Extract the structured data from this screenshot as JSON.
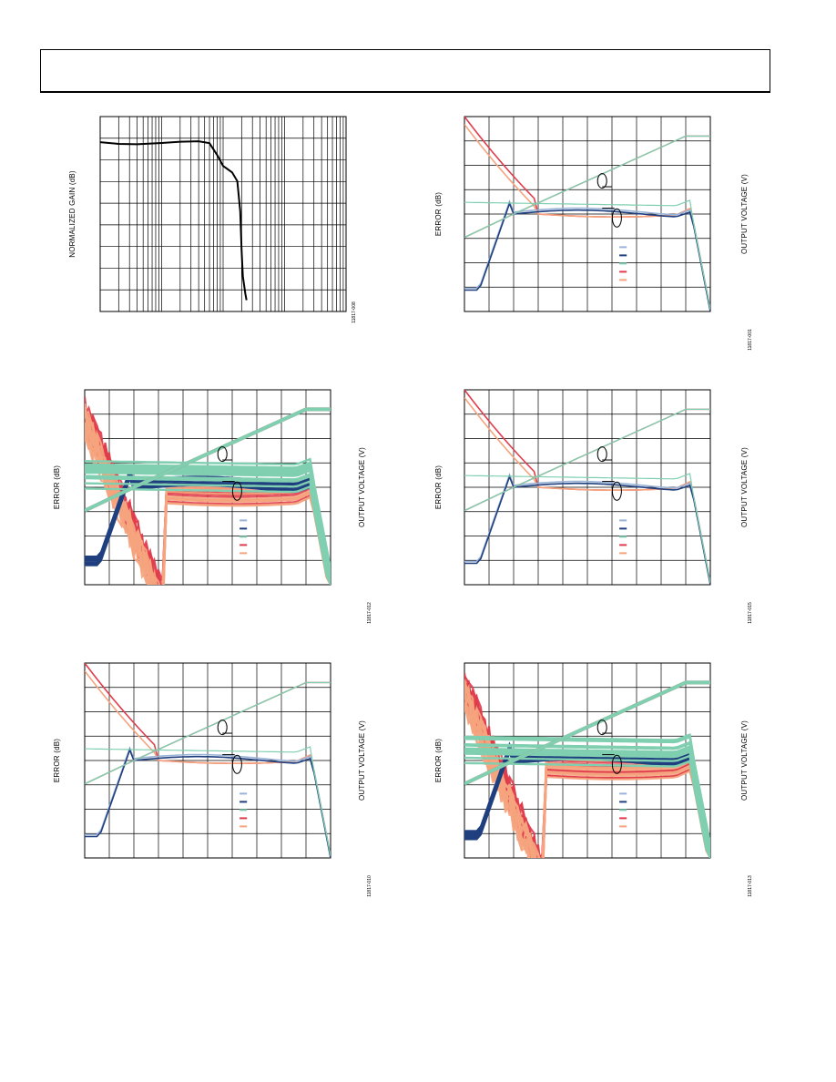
{
  "page": {
    "header_text": ""
  },
  "figures": [
    {
      "id": "gain",
      "kind": "gain",
      "ylabel": "NORMALIZED GAIN (dB)",
      "y2label": "",
      "figid": "11817-008",
      "chart_data": {
        "type": "line",
        "xscale": "log",
        "grid": true,
        "legend_entries": 0,
        "series": [
          {
            "color": "#000000",
            "x": [
              0.1,
              0.2,
              0.4,
              1,
              2,
              4,
              6,
              8,
              10,
              14,
              17,
              19,
              20,
              21,
              23,
              24
            ],
            "y": [
              0,
              -0.08,
              -0.1,
              -0.04,
              0.02,
              0.04,
              -0.05,
              -0.6,
              -1.1,
              -1.4,
              -1.8,
              -3.2,
              -5,
              -6.2,
              -7.0,
              -7.3
            ]
          }
        ]
      }
    },
    {
      "id": "fig-r1-right",
      "kind": "error",
      "ylabel": "ERROR (dB)",
      "y2label": "OUTPUT VOLTAGE (V)",
      "figid": "11817-001",
      "chart_data": {
        "type": "line",
        "grid": true,
        "legend_entries": 5,
        "colors": [
          "#9ab3d6",
          "#1f3f7f",
          "#7fcfb0",
          "#e03c4b",
          "#f5a47e"
        ]
      }
    },
    {
      "id": "fig-r2-left",
      "kind": "error-spread",
      "ylabel": "ERROR (dB)",
      "y2label": "OUTPUT VOLTAGE (V)",
      "figid": "11817-012",
      "chart_data": {
        "type": "line",
        "grid": true,
        "legend_entries": 5,
        "colors": [
          "#9ab3d6",
          "#1f3f7f",
          "#7fcfb0",
          "#e03c4b",
          "#f5a47e"
        ]
      }
    },
    {
      "id": "fig-r2-right",
      "kind": "error",
      "ylabel": "ERROR (dB)",
      "y2label": "OUTPUT VOLTAGE (V)",
      "figid": "11817-015",
      "chart_data": {
        "type": "line",
        "grid": true,
        "legend_entries": 5,
        "colors": [
          "#9ab3d6",
          "#1f3f7f",
          "#7fcfb0",
          "#e03c4b",
          "#f5a47e"
        ]
      }
    },
    {
      "id": "fig-r3-left",
      "kind": "error",
      "ylabel": "ERROR (dB)",
      "y2label": "OUTPUT VOLTAGE (V)",
      "figid": "11817-010",
      "chart_data": {
        "type": "line",
        "grid": true,
        "legend_entries": 5,
        "colors": [
          "#9ab3d6",
          "#1f3f7f",
          "#7fcfb0",
          "#e03c4b",
          "#f5a47e"
        ]
      }
    },
    {
      "id": "fig-r3-right",
      "kind": "error-spread",
      "ylabel": "ERROR (dB)",
      "y2label": "OUTPUT VOLTAGE (V)",
      "figid": "11817-013",
      "chart_data": {
        "type": "line",
        "grid": true,
        "legend_entries": 5,
        "colors": [
          "#9ab3d6",
          "#1f3f7f",
          "#7fcfb0",
          "#e03c4b",
          "#f5a47e"
        ]
      }
    }
  ]
}
